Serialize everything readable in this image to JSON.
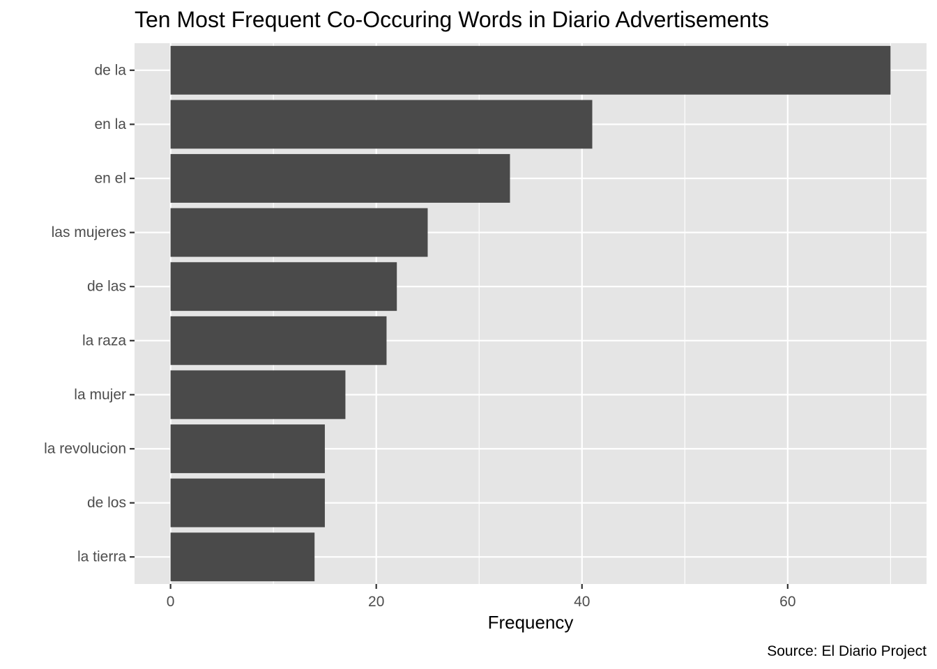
{
  "chart_data": {
    "type": "bar",
    "orientation": "horizontal",
    "title": "Ten Most Frequent Co-Occuring Words in Diario Advertisements",
    "xlabel": "Frequency",
    "ylabel": "",
    "caption": "Source: El Diario Project",
    "categories": [
      "de la",
      "en la",
      "en el",
      "las mujeres",
      "de las",
      "la raza",
      "la mujer",
      "la revolucion",
      "de los",
      "la tierra"
    ],
    "values": [
      70,
      41,
      33,
      25,
      22,
      21,
      17,
      15,
      15,
      14
    ],
    "xlim": [
      -3.5,
      73.5
    ],
    "x_ticks": [
      0,
      20,
      40,
      60
    ],
    "x_tick_labels": [
      "0",
      "20",
      "40",
      "60"
    ],
    "grid": true,
    "legend": "none",
    "colors": {
      "bar": "#4a4a4a",
      "panel_background": "#e5e5e5",
      "grid": "#ffffff",
      "tick_label": "#4d4d4d",
      "tick_mark": "#333333"
    }
  }
}
